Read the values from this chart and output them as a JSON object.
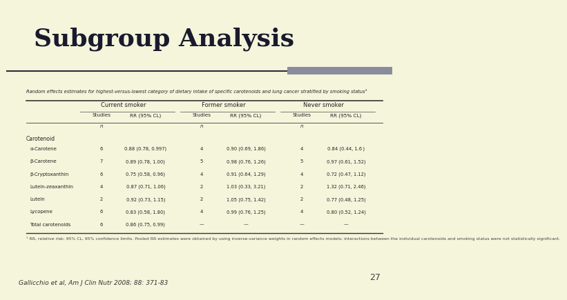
{
  "title": "Subgroup Analysis",
  "slide_number": "27",
  "citation": "Gallicchio et al, Am J Clin Nutr 2008; 88: 371-83",
  "bg_color": "#f5f5dc",
  "title_color": "#1a1a2e",
  "decoration_bar_color": "#8b8b9e",
  "table_title": "Random effects estimates for highest-versus-lowest category of dietary intake of specific carotenoids and lung cancer stratified by smoking status¹",
  "col_groups": [
    "Current smoker",
    "Former smoker",
    "Never smoker"
  ],
  "row_category": "Carotenoid",
  "rows": [
    {
      "α-Carotene": [
        "6",
        "0.88 (0.78, 0.997)",
        "4",
        "0.90 (0.69, 1.86)",
        "4",
        "0.84 (0.44, 1.6 )"
      ]
    },
    {
      "β-Carotene": [
        "7",
        "0.89 (0.78, 1.00)",
        "5",
        "0.98 (0.76, 1.26)",
        "5",
        "0.97 (0.61, 1.52)"
      ]
    },
    {
      "β-Cryptoxanthin": [
        "6",
        "0.75 (0.58, 0.96)",
        "4",
        "0.91 (0.64, 1.29)",
        "4",
        "0.72 (0.47, 1.12)"
      ]
    },
    {
      "Lutein-zeaxanthin": [
        "4",
        "0.87 (0.71, 1.06)",
        "2",
        "1.03 (0.33, 3.21)",
        "2",
        "1.32 (0.71, 2.46)"
      ]
    },
    {
      "Lutein": [
        "2",
        "0.92 (0.73, 1.15)",
        "2",
        "1.05 (0.75, 1.42)",
        "2",
        "0.77 (0.48, 1.25)"
      ]
    },
    {
      "Lycopene": [
        "6",
        "0.83 (0.58, 1.80)",
        "4",
        "0.99 (0.76, 1.25)",
        "4",
        "0.80 (0.52, 1.24)"
      ]
    },
    {
      "Total carotenoids": [
        "6",
        "0.86 (0.75, 0.99)",
        "—",
        "—",
        "—",
        "—"
      ]
    }
  ],
  "footnote": "¹ RR, relative risk; 95% CL, 95% confidence limits. Pooled RR estimates were obtained by using inverse-variance weights in random effects models; interactions between the individual carotenoids and smoking status were not statistically significant."
}
